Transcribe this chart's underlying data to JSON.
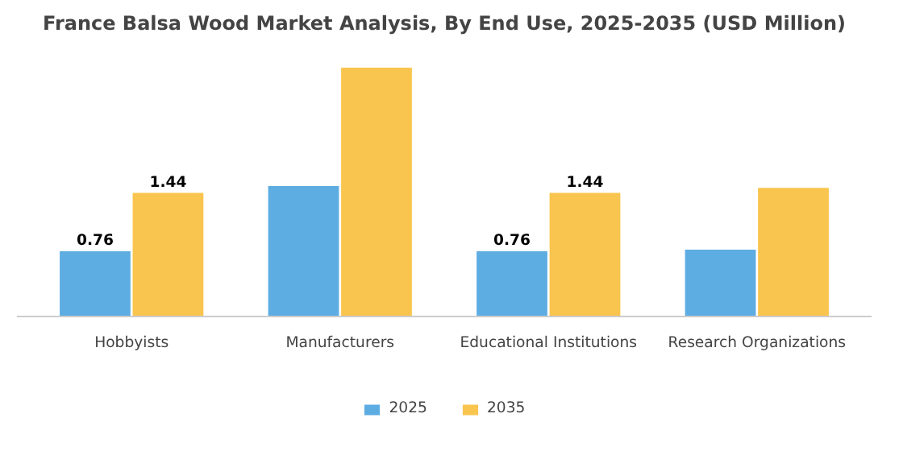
{
  "chart_data": {
    "type": "bar",
    "title": "France Balsa Wood Market Analysis, By End Use, 2025-2035 (USD Million)",
    "categories": [
      "Hobbyists",
      "Manufacturers",
      "Educational Institutions",
      "Research Organizations"
    ],
    "series": [
      {
        "name": "2025",
        "color": "#5dade2",
        "values": [
          0.76,
          1.52,
          0.76,
          0.78
        ],
        "value_labels": [
          "0.76",
          null,
          "0.76",
          null
        ]
      },
      {
        "name": "2035",
        "color": "#f9c54e",
        "values": [
          1.44,
          2.9,
          1.44,
          1.5
        ],
        "value_labels": [
          "1.44",
          null,
          "1.44",
          null
        ]
      }
    ],
    "tick_labels": "x",
    "legend": "bottom"
  }
}
